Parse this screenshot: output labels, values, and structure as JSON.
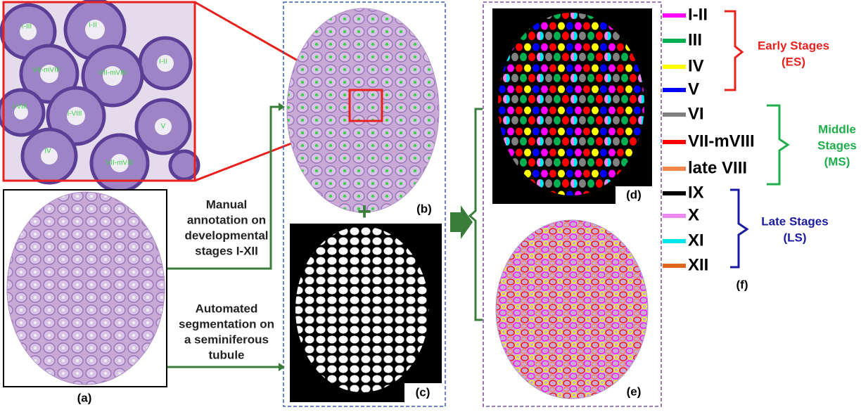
{
  "inset": {
    "labels": [
      "I-III",
      "I-II",
      "VII-mVIII",
      "VII-mVIII",
      "I-II",
      "I-VIII",
      "I-VIII",
      "V",
      "IV",
      "VII-mVIII"
    ]
  },
  "panels": {
    "a": "(a)",
    "b": "(b)",
    "c": "(c)",
    "d": "(d)",
    "e": "(e)",
    "f": "(f)"
  },
  "annotations": {
    "manual": [
      "Manual",
      "annotation on",
      "developmental",
      "stages I-XII"
    ],
    "automated": [
      "Automated",
      "segmentation on",
      "a seminiferous",
      "tubule"
    ],
    "plus": "+"
  },
  "legend": {
    "items": [
      {
        "label": "I-II",
        "color": "#ff00ff"
      },
      {
        "label": "III",
        "color": "#00b050"
      },
      {
        "label": "IV",
        "color": "#ffff00"
      },
      {
        "label": "V",
        "color": "#0000ff"
      },
      {
        "label": "VI",
        "color": "#808080"
      },
      {
        "label": "VII-mVIII",
        "color": "#ff0000"
      },
      {
        "label": "late VIII",
        "color": "#f4874b"
      },
      {
        "label": "IX",
        "color": "#000000"
      },
      {
        "label": "X",
        "color": "#ee88ee"
      },
      {
        "label": "XI",
        "color": "#00e5ee"
      },
      {
        "label": "XII",
        "color": "#e0651d"
      }
    ],
    "groups": [
      {
        "lines": [
          "Early Stages",
          "(ES)"
        ],
        "color": "#e8201e"
      },
      {
        "lines": [
          "Middle",
          "Stages",
          "(MS)"
        ],
        "color": "#1fae4b"
      },
      {
        "lines": [
          "Late Stages",
          "(LS)"
        ],
        "color": "#1a1aa0"
      }
    ]
  }
}
